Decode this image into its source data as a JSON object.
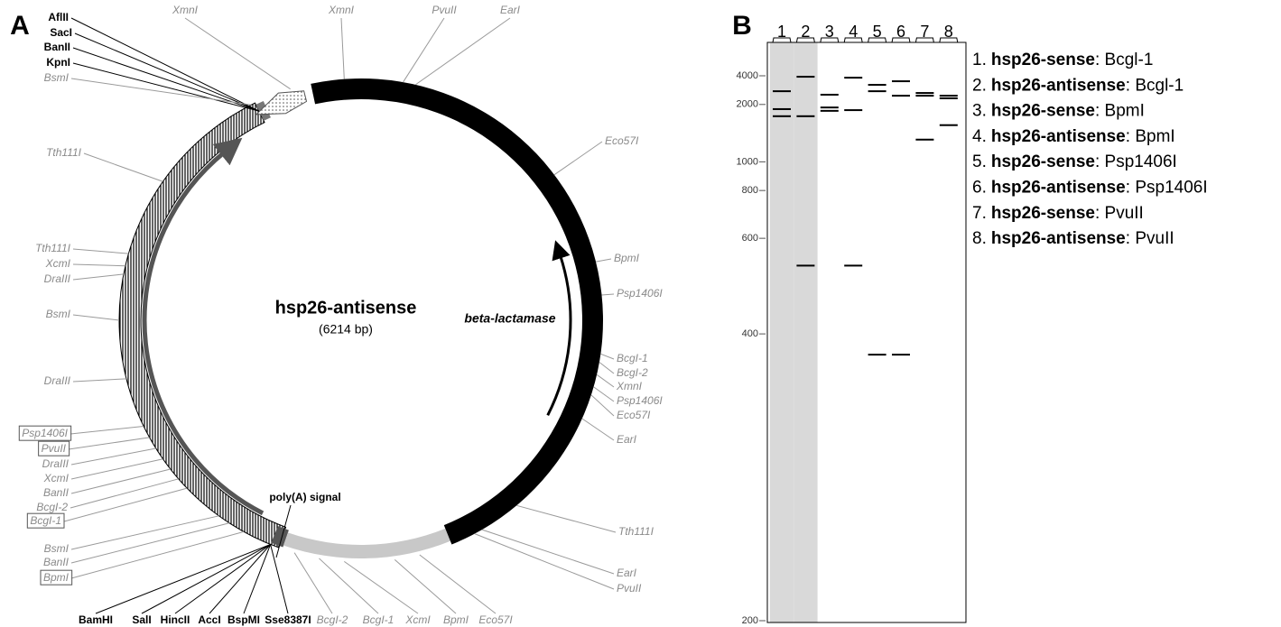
{
  "panel_a": {
    "letter": "A",
    "plasmid_name": "hsp26-antisense",
    "plasmid_size": "(6214 bp)",
    "feature_beta_lactamase": "beta-lactamase",
    "feature_polya": "poly(A) signal",
    "sites": [
      {
        "text": "XmnI",
        "style": "gray"
      },
      {
        "text": "XmnI",
        "style": "gray"
      },
      {
        "text": "PvuII",
        "style": "gray"
      },
      {
        "text": "EarI",
        "style": "gray"
      },
      {
        "text": "AflII",
        "style": "black"
      },
      {
        "text": "SacI",
        "style": "black"
      },
      {
        "text": "BanII",
        "style": "black"
      },
      {
        "text": "KpnI",
        "style": "black"
      },
      {
        "text": "BsmI",
        "style": "gray"
      },
      {
        "text": "Tth111I",
        "style": "gray"
      },
      {
        "text": "Tth111I",
        "style": "gray"
      },
      {
        "text": "XcmI",
        "style": "gray"
      },
      {
        "text": "DraIII",
        "style": "gray"
      },
      {
        "text": "BsmI",
        "style": "gray"
      },
      {
        "text": "DraIII",
        "style": "gray"
      },
      {
        "text": "Psp1406I",
        "style": "gray",
        "boxed": true
      },
      {
        "text": "PvuII",
        "style": "gray",
        "boxed": true
      },
      {
        "text": "DraIII",
        "style": "gray"
      },
      {
        "text": "XcmI",
        "style": "gray"
      },
      {
        "text": "BanII",
        "style": "gray"
      },
      {
        "text": "BcgI-2",
        "style": "gray"
      },
      {
        "text": "BcgI-1",
        "style": "gray",
        "boxed": true
      },
      {
        "text": "BsmI",
        "style": "gray"
      },
      {
        "text": "BanII",
        "style": "gray"
      },
      {
        "text": "BpmI",
        "style": "gray",
        "boxed": true
      },
      {
        "text": "Eco57I",
        "style": "gray"
      },
      {
        "text": "BpmI",
        "style": "gray"
      },
      {
        "text": "Psp1406I",
        "style": "gray"
      },
      {
        "text": "BcgI-1",
        "style": "gray"
      },
      {
        "text": "BcgI-2",
        "style": "gray"
      },
      {
        "text": "XmnI",
        "style": "gray"
      },
      {
        "text": "Psp1406I",
        "style": "gray"
      },
      {
        "text": "Eco57I",
        "style": "gray"
      },
      {
        "text": "EarI",
        "style": "gray"
      },
      {
        "text": "Tth111I",
        "style": "gray"
      },
      {
        "text": "EarI",
        "style": "gray"
      },
      {
        "text": "PvuII",
        "style": "gray"
      },
      {
        "text": "BamHI",
        "style": "black"
      },
      {
        "text": "SalI",
        "style": "black"
      },
      {
        "text": "HincII",
        "style": "black"
      },
      {
        "text": "AccI",
        "style": "black"
      },
      {
        "text": "BspMI",
        "style": "black"
      },
      {
        "text": "Sse8387I",
        "style": "black"
      },
      {
        "text": "BcgI-2",
        "style": "gray"
      },
      {
        "text": "BcgI-1",
        "style": "gray"
      },
      {
        "text": "XcmI",
        "style": "gray"
      },
      {
        "text": "BpmI",
        "style": "gray"
      },
      {
        "text": "Eco57I",
        "style": "gray"
      }
    ]
  },
  "panel_b": {
    "letter": "B",
    "scale": "reciprocal",
    "yticks": [
      200,
      400,
      600,
      800,
      1000,
      2000,
      4000
    ],
    "lanes": [
      {
        "label": "1",
        "shaded": true,
        "bands": [
          2600,
          1850,
          1660
        ]
      },
      {
        "label": "2",
        "shaded": true,
        "bands": [
          3870,
          1660,
          525
        ]
      },
      {
        "label": "3",
        "bands": [
          2410,
          1900,
          1800
        ]
      },
      {
        "label": "4",
        "bands": [
          3750,
          1820,
          525
        ]
      },
      {
        "label": "5",
        "bands": [
          3040,
          2600,
          373
        ]
      },
      {
        "label": "6",
        "bands": [
          3360,
          2360,
          373
        ]
      },
      {
        "label": "7",
        "bands": [
          2500,
          2360,
          1240
        ]
      },
      {
        "label": "8",
        "bands": [
          2360,
          2240,
          1470
        ]
      }
    ],
    "legend": [
      {
        "number": "1.",
        "construct": "hsp26-sense",
        "enzyme": ": Bcgl-1"
      },
      {
        "number": "2.",
        "construct": "hsp26-antisense",
        "enzyme": ": Bcgl-1"
      },
      {
        "number": "3.",
        "construct": "hsp26-sense",
        "enzyme": ": BpmI"
      },
      {
        "number": "4.",
        "construct": "hsp26-antisense",
        "enzyme": ": BpmI"
      },
      {
        "number": "5.",
        "construct": "hsp26-sense",
        "enzyme": ": Psp1406I"
      },
      {
        "number": "6.",
        "construct": "hsp26-antisense",
        "enzyme": ": Psp1406I"
      },
      {
        "number": "7.",
        "construct": "hsp26-sense",
        "enzyme": ": PvuII"
      },
      {
        "number": "8.",
        "construct": "hsp26-antisense",
        "enzyme": ": PvuII"
      }
    ]
  }
}
